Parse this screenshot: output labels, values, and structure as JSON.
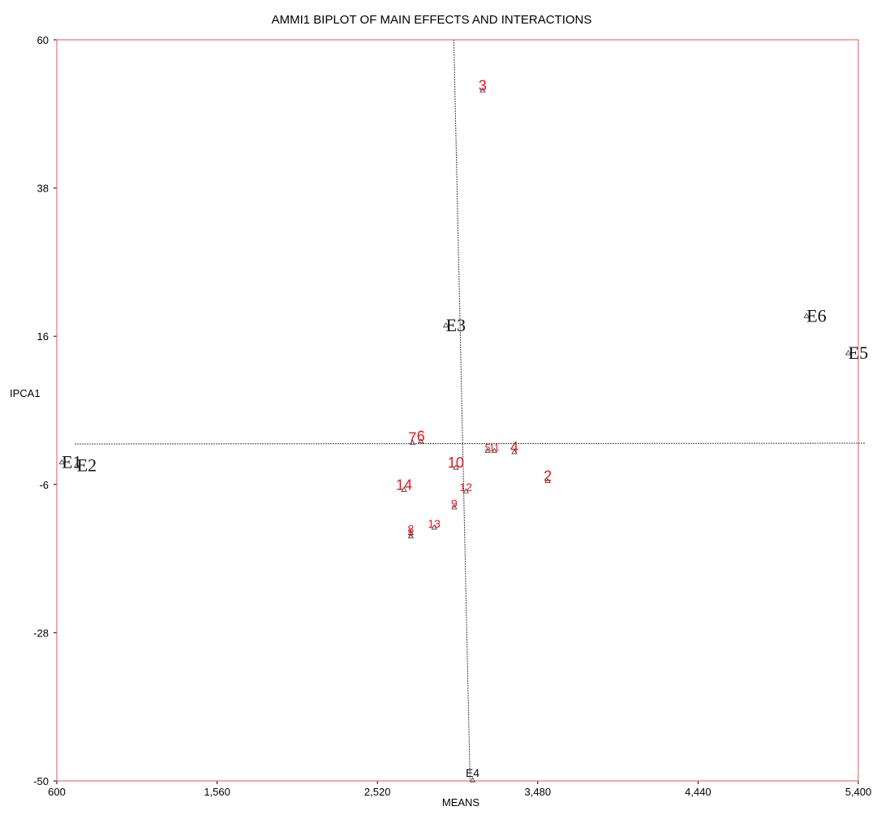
{
  "chart_data": {
    "type": "scatter",
    "title": "AMMI1 BIPLOT OF MAIN EFFECTS AND INTERACTIONS",
    "xlabel": "MEANS",
    "ylabel": "IPCA1",
    "xlim": [
      600,
      5400
    ],
    "ylim": [
      -50,
      60
    ],
    "x_ticks": [
      600,
      1560,
      2520,
      3480,
      4440,
      5400
    ],
    "x_tick_labels": [
      "600",
      "1,560",
      "2,520",
      "3,480",
      "4,440",
      "5,400"
    ],
    "y_ticks": [
      60,
      38,
      16,
      -6,
      -28,
      -50
    ],
    "y_tick_labels": [
      "60",
      "38",
      "16",
      "-6",
      "-28",
      "-50"
    ],
    "grand_mean_x": 3065,
    "reference_y": 0,
    "environments": [
      {
        "label": "E1",
        "x": 630,
        "y": -2.7
      },
      {
        "label": "E2",
        "x": 720,
        "y": -3.2
      },
      {
        "label": "E3",
        "x": 2930,
        "y": 17.6
      },
      {
        "label": "E4",
        "x": 3090,
        "y": -49.9
      },
      {
        "label": "E5",
        "x": 5340,
        "y": 13.5
      },
      {
        "label": "E6",
        "x": 5090,
        "y": 19.0
      }
    ],
    "genotypes": [
      {
        "label": "1",
        "x": 2720,
        "y": -13.7
      },
      {
        "label": "2",
        "x": 3540,
        "y": -5.5
      },
      {
        "label": "3",
        "x": 3150,
        "y": 52.5
      },
      {
        "label": "4",
        "x": 3340,
        "y": -1.2
      },
      {
        "label": "5",
        "x": 3180,
        "y": -1.0
      },
      {
        "label": "6",
        "x": 2780,
        "y": 0.4
      },
      {
        "label": "7",
        "x": 2730,
        "y": 0.2
      },
      {
        "label": "8",
        "x": 2720,
        "y": -13.2
      },
      {
        "label": "9",
        "x": 2980,
        "y": -9.4
      },
      {
        "label": "10",
        "x": 2990,
        "y": -3.5
      },
      {
        "label": "11",
        "x": 3220,
        "y": -1.0
      },
      {
        "label": "12",
        "x": 3050,
        "y": -7.0
      },
      {
        "label": "13",
        "x": 2860,
        "y": -12.4
      },
      {
        "label": "14",
        "x": 2680,
        "y": -6.8
      }
    ],
    "colors": {
      "frame": "#e8505a",
      "genotype": "#e8141c",
      "environment": "#111111",
      "reference_lines": "#444444"
    }
  }
}
